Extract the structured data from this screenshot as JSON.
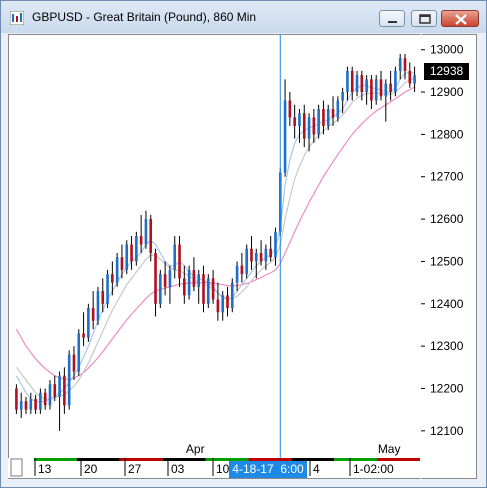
{
  "window": {
    "title": "GBPUSD - Great Britain (Pound), 860 Min",
    "buttons": [
      "minimize",
      "maximize",
      "close"
    ]
  },
  "chart_data": {
    "type": "bar",
    "symbol": "GBPUSD",
    "interval": "860 Min",
    "ylim": [
      12050,
      13030
    ],
    "y_ticks": [
      12100,
      12200,
      12300,
      12400,
      12500,
      12600,
      12700,
      12800,
      12900,
      13000
    ],
    "last_price": "12938",
    "month_labels": [
      "Apr",
      "May"
    ],
    "x_tick_labels": [
      "13",
      "20",
      "27",
      "03",
      "10",
      "4-18-17  6:00",
      "4",
      "1-02:00"
    ],
    "crosshair_label": "4-18-17  6:00",
    "up_color": "#1f6fc8",
    "down_color": "#b01020",
    "ma_fast_color": "#a9c6ec",
    "ma_mid_color": "#c8c8c8",
    "ma_slow_color": "#f08cc0",
    "ohlc": [
      [
        12200,
        12210,
        12140,
        12150
      ],
      [
        12150,
        12190,
        12130,
        12170
      ],
      [
        12170,
        12180,
        12140,
        12150
      ],
      [
        12150,
        12190,
        12140,
        12175
      ],
      [
        12175,
        12185,
        12140,
        12150
      ],
      [
        12150,
        12200,
        12140,
        12190
      ],
      [
        12190,
        12200,
        12150,
        12160
      ],
      [
        12160,
        12220,
        12150,
        12210
      ],
      [
        12210,
        12230,
        12170,
        12180
      ],
      [
        12180,
        12240,
        12100,
        12230
      ],
      [
        12230,
        12250,
        12140,
        12160
      ],
      [
        12160,
        12290,
        12150,
        12280
      ],
      [
        12280,
        12300,
        12220,
        12240
      ],
      [
        12240,
        12340,
        12230,
        12330
      ],
      [
        12330,
        12380,
        12300,
        12320
      ],
      [
        12320,
        12400,
        12310,
        12390
      ],
      [
        12390,
        12430,
        12340,
        12360
      ],
      [
        12360,
        12440,
        12350,
        12430
      ],
      [
        12430,
        12460,
        12380,
        12400
      ],
      [
        12400,
        12480,
        12390,
        12470
      ],
      [
        12470,
        12500,
        12420,
        12450
      ],
      [
        12450,
        12520,
        12440,
        12510
      ],
      [
        12510,
        12540,
        12460,
        12480
      ],
      [
        12480,
        12550,
        12470,
        12540
      ],
      [
        12540,
        12560,
        12480,
        12500
      ],
      [
        12500,
        12570,
        12490,
        12560
      ],
      [
        12560,
        12610,
        12520,
        12540
      ],
      [
        12540,
        12620,
        12530,
        12600
      ],
      [
        12600,
        12610,
        12500,
        12520
      ],
      [
        12520,
        12530,
        12370,
        12400
      ],
      [
        12400,
        12480,
        12390,
        12470
      ],
      [
        12470,
        12500,
        12420,
        12440
      ],
      [
        12440,
        12490,
        12400,
        12480
      ],
      [
        12480,
        12560,
        12460,
        12540
      ],
      [
        12540,
        12560,
        12440,
        12460
      ],
      [
        12460,
        12490,
        12400,
        12420
      ],
      [
        12420,
        12490,
        12410,
        12480
      ],
      [
        12480,
        12510,
        12430,
        12440
      ],
      [
        12440,
        12480,
        12400,
        12470
      ],
      [
        12470,
        12490,
        12380,
        12400
      ],
      [
        12400,
        12470,
        12390,
        12460
      ],
      [
        12460,
        12480,
        12400,
        12410
      ],
      [
        12410,
        12450,
        12360,
        12380
      ],
      [
        12380,
        12430,
        12360,
        12420
      ],
      [
        12420,
        12440,
        12370,
        12390
      ],
      [
        12390,
        12460,
        12380,
        12450
      ],
      [
        12450,
        12500,
        12430,
        12490
      ],
      [
        12490,
        12520,
        12450,
        12470
      ],
      [
        12470,
        12540,
        12460,
        12530
      ],
      [
        12530,
        12560,
        12480,
        12500
      ],
      [
        12500,
        12530,
        12460,
        12520
      ],
      [
        12520,
        12550,
        12490,
        12500
      ],
      [
        12500,
        12540,
        12480,
        12530
      ],
      [
        12530,
        12560,
        12500,
        12510
      ],
      [
        12510,
        12580,
        12490,
        12570
      ],
      [
        12570,
        12720,
        12560,
        12710
      ],
      [
        12710,
        12930,
        12700,
        12880
      ],
      [
        12880,
        12900,
        12820,
        12840
      ],
      [
        12840,
        12870,
        12790,
        12820
      ],
      [
        12820,
        12860,
        12780,
        12850
      ],
      [
        12850,
        12870,
        12770,
        12790
      ],
      [
        12790,
        12850,
        12760,
        12840
      ],
      [
        12840,
        12860,
        12780,
        12800
      ],
      [
        12800,
        12870,
        12790,
        12860
      ],
      [
        12860,
        12880,
        12800,
        12820
      ],
      [
        12820,
        12870,
        12810,
        12860
      ],
      [
        12860,
        12890,
        12820,
        12840
      ],
      [
        12840,
        12890,
        12830,
        12880
      ],
      [
        12880,
        12910,
        12850,
        12900
      ],
      [
        12900,
        12960,
        12880,
        12950
      ],
      [
        12950,
        12960,
        12880,
        12900
      ],
      [
        12900,
        12950,
        12890,
        12940
      ],
      [
        12940,
        12950,
        12880,
        12900
      ],
      [
        12900,
        12940,
        12870,
        12930
      ],
      [
        12930,
        12940,
        12860,
        12880
      ],
      [
        12880,
        12940,
        12870,
        12930
      ],
      [
        12930,
        12950,
        12880,
        12890
      ],
      [
        12890,
        12930,
        12830,
        12920
      ],
      [
        12920,
        12950,
        12880,
        12900
      ],
      [
        12900,
        12960,
        12890,
        12950
      ],
      [
        12950,
        12990,
        12930,
        12980
      ],
      [
        12980,
        12990,
        12930,
        12950
      ],
      [
        12950,
        12970,
        12910,
        12920
      ],
      [
        12920,
        12960,
        12900,
        12940
      ]
    ],
    "ma_fast": [
      12230,
      12210,
      12190,
      12175,
      12170,
      12168,
      12170,
      12175,
      12180,
      12190,
      12200,
      12215,
      12230,
      12250,
      12275,
      12300,
      12330,
      12360,
      12385,
      12410,
      12430,
      12450,
      12470,
      12485,
      12500,
      12510,
      12520,
      12540,
      12550,
      12540,
      12520,
      12500,
      12490,
      12490,
      12500,
      12490,
      12475,
      12465,
      12460,
      12455,
      12450,
      12440,
      12425,
      12415,
      12410,
      12415,
      12430,
      12445,
      12460,
      12475,
      12490,
      12500,
      12510,
      12515,
      12530,
      12580,
      12680,
      12740,
      12780,
      12800,
      12810,
      12815,
      12820,
      12825,
      12830,
      12835,
      12840,
      12850,
      12860,
      12880,
      12900,
      12910,
      12915,
      12915,
      12910,
      12908,
      12905,
      12900,
      12900,
      12910,
      12930,
      12945,
      12945,
      12945
    ],
    "ma_mid": [
      12250,
      12235,
      12220,
      12205,
      12190,
      12180,
      12175,
      12175,
      12178,
      12182,
      12185,
      12195,
      12205,
      12220,
      12240,
      12260,
      12285,
      12310,
      12335,
      12360,
      12385,
      12405,
      12425,
      12445,
      12460,
      12475,
      12490,
      12505,
      12515,
      12515,
      12505,
      12495,
      12485,
      12480,
      12478,
      12472,
      12465,
      12458,
      12452,
      12447,
      12442,
      12435,
      12425,
      12418,
      12412,
      12412,
      12418,
      12428,
      12440,
      12455,
      12468,
      12480,
      12490,
      12498,
      12510,
      12540,
      12600,
      12650,
      12695,
      12725,
      12750,
      12770,
      12785,
      12798,
      12808,
      12818,
      12826,
      12835,
      12845,
      12860,
      12875,
      12885,
      12892,
      12896,
      12898,
      12898,
      12897,
      12895,
      12895,
      12900,
      12910,
      12922,
      12928,
      12932
    ],
    "ma_slow": [
      12340,
      12320,
      12300,
      12285,
      12270,
      12258,
      12247,
      12238,
      12230,
      12225,
      12222,
      12222,
      12225,
      12230,
      12238,
      12248,
      12260,
      12273,
      12287,
      12302,
      12317,
      12332,
      12347,
      12362,
      12375,
      12388,
      12400,
      12412,
      12423,
      12430,
      12434,
      12437,
      12440,
      12443,
      12446,
      12448,
      12449,
      12450,
      12450,
      12450,
      12450,
      12449,
      12447,
      12445,
      12443,
      12442,
      12443,
      12445,
      12448,
      12452,
      12457,
      12462,
      12468,
      12473,
      12480,
      12495,
      12520,
      12545,
      12570,
      12595,
      12617,
      12640,
      12660,
      12680,
      12700,
      12718,
      12735,
      12752,
      12768,
      12785,
      12800,
      12813,
      12825,
      12836,
      12846,
      12855,
      12863,
      12870,
      12877,
      12884,
      12892,
      12900,
      12906,
      12912
    ]
  }
}
